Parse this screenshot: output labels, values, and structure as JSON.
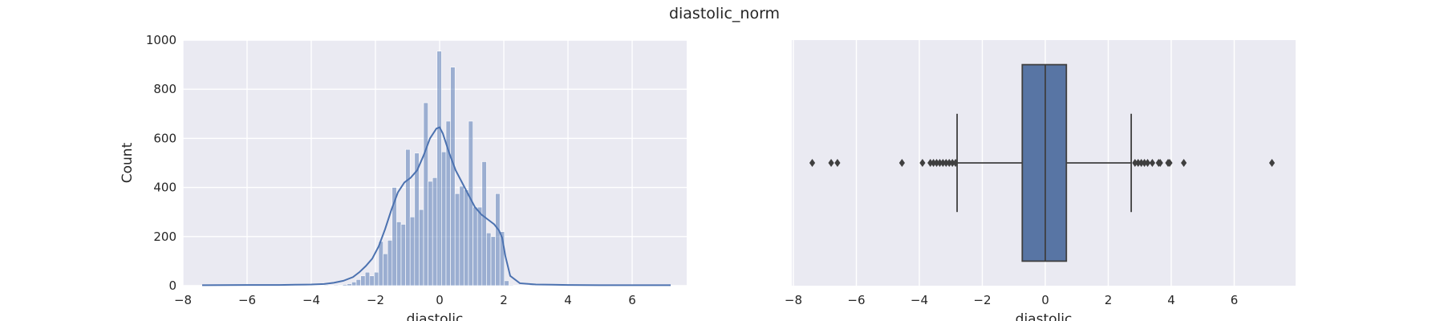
{
  "title": "diastolic_norm",
  "chart_data": [
    {
      "type": "histogram",
      "title": "",
      "xlabel": "diastolic",
      "ylabel": "Count",
      "xlim": [
        -8,
        7.7
      ],
      "ylim": [
        0,
        1000
      ],
      "xticks": [
        -8,
        -6,
        -4,
        -2,
        0,
        2,
        4,
        6
      ],
      "xtick_labels": [
        "−8",
        "−6",
        "−4",
        "−2",
        "0",
        "2",
        "4",
        "6"
      ],
      "yticks": [
        0,
        200,
        400,
        600,
        800,
        1000
      ],
      "ytick_labels": [
        "0",
        "200",
        "400",
        "600",
        "800",
        "1000"
      ],
      "grid": true,
      "bar_color": "#4c72b0",
      "bins": [
        {
          "x0": -7.4,
          "x1": -7.26,
          "count": 2
        },
        {
          "x0": -6.8,
          "x1": -6.66,
          "count": 2
        },
        {
          "x0": -4.5,
          "x1": -4.36,
          "count": 2
        },
        {
          "x0": -3.9,
          "x1": -3.76,
          "count": 2
        },
        {
          "x0": -3.6,
          "x1": -3.46,
          "count": 3
        },
        {
          "x0": -3.3,
          "x1": -3.16,
          "count": 3
        },
        {
          "x0": -3.02,
          "x1": -2.88,
          "count": 5
        },
        {
          "x0": -2.88,
          "x1": -2.74,
          "count": 8
        },
        {
          "x0": -2.74,
          "x1": -2.6,
          "count": 15
        },
        {
          "x0": -2.6,
          "x1": -2.46,
          "count": 25
        },
        {
          "x0": -2.46,
          "x1": -2.32,
          "count": 40
        },
        {
          "x0": -2.32,
          "x1": -2.18,
          "count": 55
        },
        {
          "x0": -2.18,
          "x1": -2.04,
          "count": 40
        },
        {
          "x0": -2.04,
          "x1": -1.9,
          "count": 55
        },
        {
          "x0": -1.9,
          "x1": -1.76,
          "count": 180
        },
        {
          "x0": -1.76,
          "x1": -1.62,
          "count": 130
        },
        {
          "x0": -1.62,
          "x1": -1.48,
          "count": 185
        },
        {
          "x0": -1.48,
          "x1": -1.34,
          "count": 400
        },
        {
          "x0": -1.34,
          "x1": -1.2,
          "count": 260
        },
        {
          "x0": -1.2,
          "x1": -1.06,
          "count": 250
        },
        {
          "x0": -1.06,
          "x1": -0.92,
          "count": 555
        },
        {
          "x0": -0.92,
          "x1": -0.78,
          "count": 280
        },
        {
          "x0": -0.78,
          "x1": -0.64,
          "count": 540
        },
        {
          "x0": -0.64,
          "x1": -0.5,
          "count": 310
        },
        {
          "x0": -0.5,
          "x1": -0.36,
          "count": 745
        },
        {
          "x0": -0.36,
          "x1": -0.22,
          "count": 425
        },
        {
          "x0": -0.22,
          "x1": -0.08,
          "count": 440
        },
        {
          "x0": -0.08,
          "x1": 0.06,
          "count": 955
        },
        {
          "x0": 0.06,
          "x1": 0.2,
          "count": 545
        },
        {
          "x0": 0.2,
          "x1": 0.34,
          "count": 670
        },
        {
          "x0": 0.34,
          "x1": 0.48,
          "count": 890
        },
        {
          "x0": 0.48,
          "x1": 0.62,
          "count": 375
        },
        {
          "x0": 0.62,
          "x1": 0.76,
          "count": 405
        },
        {
          "x0": 0.76,
          "x1": 0.9,
          "count": 390
        },
        {
          "x0": 0.9,
          "x1": 1.04,
          "count": 670
        },
        {
          "x0": 1.04,
          "x1": 1.18,
          "count": 320
        },
        {
          "x0": 1.18,
          "x1": 1.32,
          "count": 320
        },
        {
          "x0": 1.32,
          "x1": 1.46,
          "count": 505
        },
        {
          "x0": 1.46,
          "x1": 1.6,
          "count": 215
        },
        {
          "x0": 1.6,
          "x1": 1.74,
          "count": 200
        },
        {
          "x0": 1.74,
          "x1": 1.88,
          "count": 375
        },
        {
          "x0": 1.88,
          "x1": 2.02,
          "count": 220
        },
        {
          "x0": 2.02,
          "x1": 2.16,
          "count": 20
        },
        {
          "x0": 2.16,
          "x1": 2.3,
          "count": 3
        },
        {
          "x0": 2.8,
          "x1": 2.94,
          "count": 3
        },
        {
          "x0": 3.4,
          "x1": 3.54,
          "count": 2
        },
        {
          "x0": 3.9,
          "x1": 4.04,
          "count": 2
        },
        {
          "x0": 4.4,
          "x1": 4.54,
          "count": 2
        },
        {
          "x0": 7.1,
          "x1": 7.24,
          "count": 2
        }
      ],
      "kde": {
        "x": [
          -7.4,
          -6,
          -5,
          -4.5,
          -4,
          -3.6,
          -3.3,
          -3,
          -2.7,
          -2.5,
          -2.3,
          -2.1,
          -1.9,
          -1.7,
          -1.5,
          -1.3,
          -1.1,
          -0.9,
          -0.7,
          -0.5,
          -0.3,
          -0.1,
          0,
          0.1,
          0.2,
          0.3,
          0.5,
          0.7,
          0.9,
          1.1,
          1.3,
          1.5,
          1.7,
          1.85,
          1.95,
          2.05,
          2.2,
          2.5,
          3,
          3.5,
          4,
          5,
          6,
          7.2
        ],
        "y": [
          2,
          3,
          3,
          4,
          5,
          7,
          12,
          20,
          35,
          55,
          80,
          110,
          160,
          230,
          310,
          380,
          420,
          440,
          470,
          530,
          600,
          640,
          645,
          620,
          580,
          540,
          470,
          420,
          370,
          320,
          290,
          270,
          250,
          225,
          195,
          120,
          40,
          10,
          5,
          4,
          3,
          2,
          2,
          2
        ]
      }
    },
    {
      "type": "boxplot",
      "title": "",
      "xlabel": "diastolic",
      "xlim": [
        -8.05,
        7.95
      ],
      "xticks": [
        -8,
        -6,
        -4,
        -2,
        0,
        2,
        4,
        6
      ],
      "xtick_labels": [
        "−8",
        "−6",
        "−4",
        "−2",
        "0",
        "2",
        "4",
        "6"
      ],
      "grid": true,
      "box_color": "#5875a4",
      "q1": -0.73,
      "median": 0,
      "q3": 0.67,
      "whisker_low": -2.8,
      "whisker_high": 2.73,
      "outliers": [
        -7.4,
        -6.8,
        -6.6,
        -4.55,
        -3.9,
        -3.65,
        -3.55,
        -3.45,
        -3.35,
        -3.25,
        -3.15,
        -3.05,
        -2.95,
        -2.85,
        2.85,
        2.95,
        3.05,
        3.15,
        3.25,
        3.4,
        3.6,
        3.65,
        3.9,
        3.95,
        4.4,
        7.2
      ]
    }
  ]
}
